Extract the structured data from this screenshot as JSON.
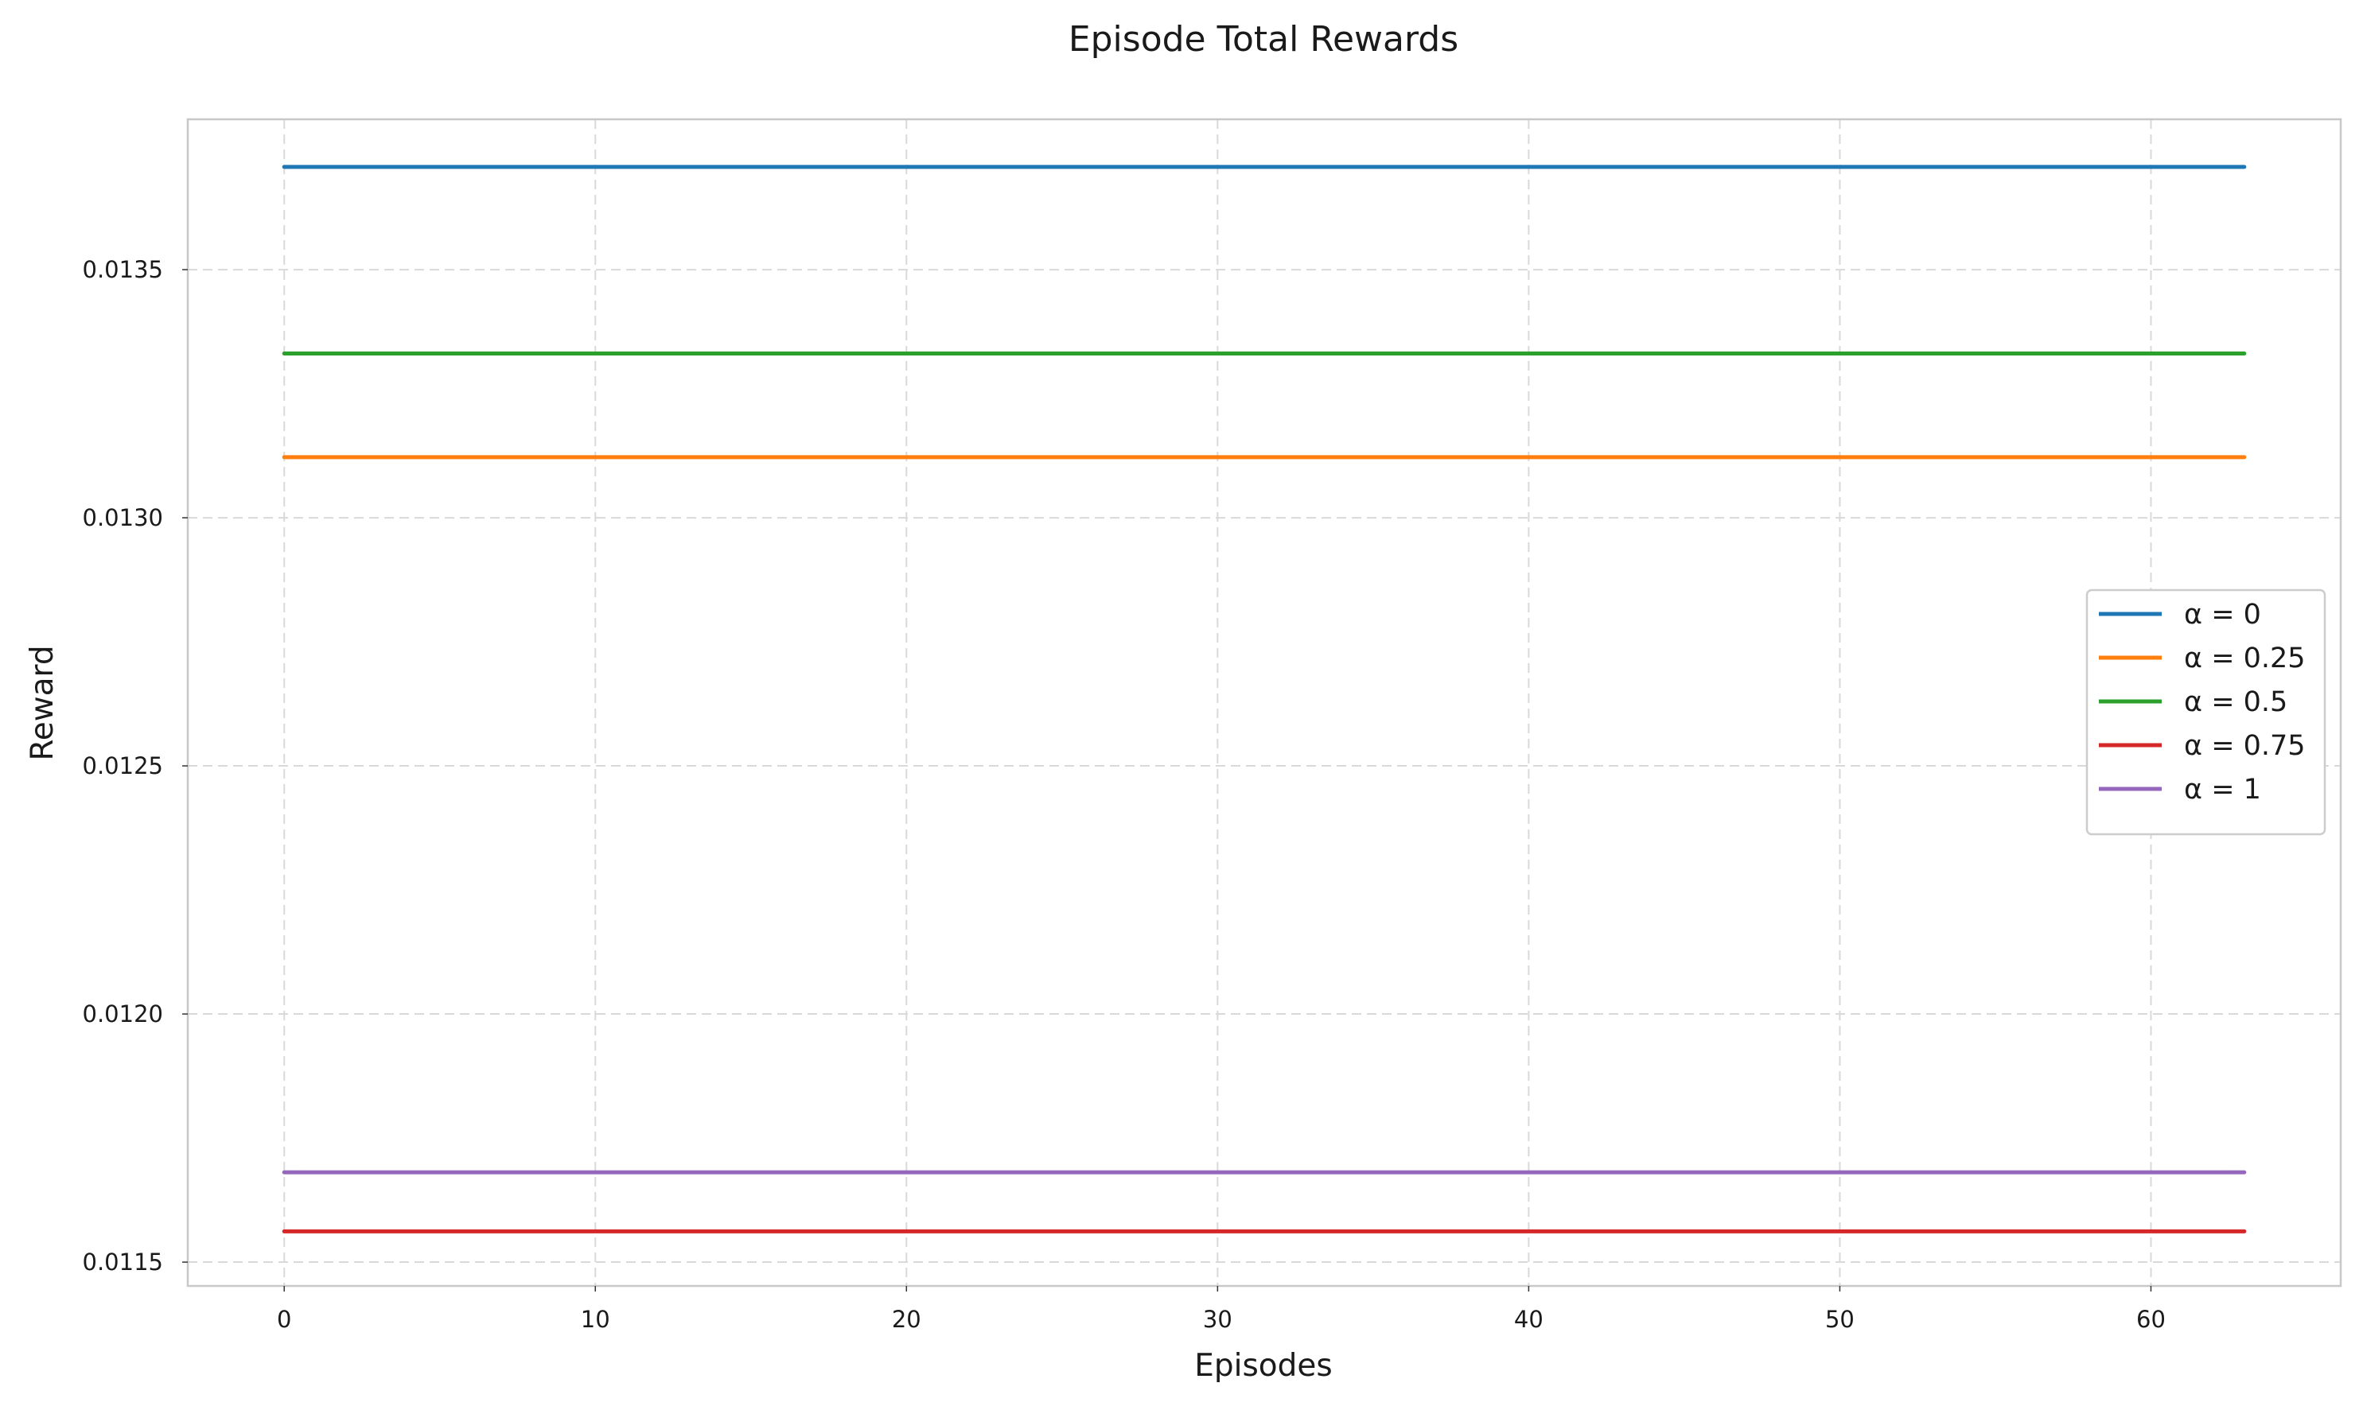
{
  "chart_data": {
    "type": "line",
    "title": "Episode Total Rewards",
    "xlabel": "Episodes",
    "ylabel": "Reward",
    "xlim": [
      -3.1,
      66.1
    ],
    "ylim": [
      0.011452,
      0.013803
    ],
    "xticks": [
      0,
      10,
      20,
      30,
      40,
      50,
      60
    ],
    "xtick_labels": [
      "0",
      "10",
      "20",
      "30",
      "40",
      "50",
      "60"
    ],
    "yticks": [
      0.0115,
      0.012,
      0.0125,
      0.013,
      0.0135
    ],
    "ytick_labels": [
      "0.0115",
      "0.0120",
      "0.0125",
      "0.0130",
      "0.0135"
    ],
    "x": [
      0,
      63
    ],
    "grid": true,
    "grid_style": "dashed",
    "legend_position": "center-right",
    "series": [
      {
        "name": "α = 0",
        "color": "#1f77b4",
        "values": [
          0.013707,
          0.013707
        ]
      },
      {
        "name": "α = 0.25",
        "color": "#ff7f0e",
        "values": [
          0.013122,
          0.013122
        ]
      },
      {
        "name": "α = 0.5",
        "color": "#2ca02c",
        "values": [
          0.013331,
          0.013331
        ]
      },
      {
        "name": "α = 0.75",
        "color": "#d62728",
        "values": [
          0.011562,
          0.011562
        ]
      },
      {
        "name": "α = 1",
        "color": "#9467bd",
        "values": [
          0.011681,
          0.011681
        ]
      }
    ]
  }
}
